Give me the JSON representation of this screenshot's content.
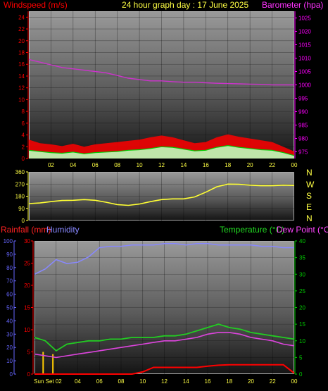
{
  "header": {
    "windspeed_label": "Windspeed (m/s)",
    "title": "24 hour graph day : 17 June 2025",
    "barometer_label": "Barometer (hpa)"
  },
  "colors": {
    "wind": "#ff0000",
    "gust": "#00cc00",
    "barometer": "#cc33cc",
    "direction": "#ffff33",
    "temperature": "#22cc22",
    "dewpoint": "#dd44dd",
    "humidity": "#8888ff",
    "rain": "#ff0000",
    "axis_red": "#ff0000",
    "axis_green": "#00cc00",
    "axis_magenta": "#ff00ff",
    "axis_blue": "#6666ff"
  },
  "x_ticks": [
    "02",
    "04",
    "06",
    "08",
    "10",
    "12",
    "14",
    "16",
    "18",
    "20",
    "22",
    "00"
  ],
  "bottom_x_ticks": [
    "Sun Set 02",
    "04",
    "06",
    "08",
    "10",
    "12",
    "14",
    "16",
    "18",
    "20",
    "22",
    "00"
  ],
  "wind_panel": {
    "chart_data": {
      "type": "line",
      "left_axis": {
        "label": "Windspeed (m/s)",
        "ticks": [
          0,
          2,
          4,
          6,
          8,
          10,
          12,
          14,
          16,
          18,
          20,
          22,
          24
        ],
        "ylim": [
          0,
          25
        ]
      },
      "right_axis": {
        "label": "Barometer (hpa)",
        "ticks": [
          975,
          980,
          985,
          990,
          995,
          1000,
          1005,
          1010,
          1015,
          1020,
          1025
        ],
        "ylim": [
          972.5,
          1027.5
        ]
      },
      "x": [
        0,
        1,
        2,
        3,
        4,
        5,
        6,
        7,
        8,
        9,
        10,
        11,
        12,
        13,
        14,
        15,
        16,
        17,
        18,
        19,
        20,
        21,
        22,
        23,
        24
      ],
      "barometer": [
        1009.5,
        1008.5,
        1007.5,
        1006.5,
        1006,
        1005.5,
        1005,
        1004.5,
        1003.5,
        1002.5,
        1002,
        1001.5,
        1001.5,
        1001.2,
        1001,
        1001,
        1000.8,
        1000.6,
        1000.5,
        1000.4,
        1000.3,
        1000.2,
        1000,
        1000,
        1000
      ],
      "windspeed": [
        3.2,
        2.6,
        2.4,
        2.1,
        2.5,
        2.0,
        2.4,
        2.6,
        2.8,
        3.0,
        3.2,
        3.6,
        3.9,
        3.6,
        3.1,
        2.6,
        2.8,
        3.6,
        4.1,
        3.7,
        3.4,
        3.1,
        2.8,
        2.0,
        1.2
      ],
      "gust": [
        1.4,
        1.2,
        1.0,
        0.9,
        1.1,
        0.8,
        1.0,
        1.1,
        1.2,
        1.4,
        1.5,
        1.7,
        2.0,
        1.9,
        1.6,
        1.3,
        1.4,
        1.9,
        2.2,
        1.9,
        1.7,
        1.5,
        1.4,
        1.0,
        0.5
      ]
    }
  },
  "dir_panel": {
    "compass": [
      "N",
      "W",
      "S",
      "E",
      "N"
    ],
    "chart_data": {
      "type": "line",
      "axis": {
        "ticks": [
          0,
          90,
          180,
          270,
          360
        ],
        "ylim": [
          0,
          360
        ]
      },
      "x": [
        0,
        1,
        2,
        3,
        4,
        5,
        6,
        7,
        8,
        9,
        10,
        11,
        12,
        13,
        14,
        15,
        16,
        17,
        18,
        19,
        20,
        21,
        22,
        23,
        24
      ],
      "direction": [
        125,
        130,
        140,
        148,
        150,
        155,
        150,
        135,
        118,
        112,
        122,
        140,
        155,
        160,
        160,
        175,
        210,
        250,
        270,
        268,
        262,
        258,
        258,
        262,
        260
      ]
    }
  },
  "bottom_panel": {
    "rainfall_label": "Rainfall (mm)",
    "humidity_label": "Humidity",
    "temperature_label": "Temperature (°C)",
    "dewpoint_label": "Dew Point (°C)",
    "chart_data": {
      "type": "line",
      "humidity_axis": {
        "ticks": [
          0,
          10,
          20,
          30,
          40,
          50,
          60,
          70,
          80,
          90,
          100
        ],
        "ylim": [
          0,
          100
        ]
      },
      "rain_axis": {
        "ticks": [
          0,
          5,
          10,
          15,
          20,
          25,
          30
        ],
        "ylim": [
          0,
          30
        ]
      },
      "temp_axis": {
        "ticks": [
          0,
          5,
          10,
          15,
          20,
          25,
          30,
          35,
          40
        ],
        "ylim": [
          0,
          40
        ]
      },
      "x": [
        0,
        1,
        2,
        3,
        4,
        5,
        6,
        7,
        8,
        9,
        10,
        11,
        12,
        13,
        14,
        15,
        16,
        17,
        18,
        19,
        20,
        21,
        22,
        23,
        24
      ],
      "humidity": [
        75,
        79,
        86,
        83,
        84,
        88,
        95,
        96,
        96,
        97,
        97,
        97,
        98,
        98,
        97,
        98,
        98,
        97,
        97,
        97,
        97,
        96,
        96,
        95,
        95
      ],
      "temperature": [
        11,
        10,
        7,
        9,
        9.5,
        10,
        10,
        10.5,
        10.5,
        11,
        11,
        11,
        11.5,
        11.5,
        12,
        13,
        14,
        15,
        14,
        13.5,
        12.5,
        12,
        11.5,
        11,
        10.5
      ],
      "dewpoint": [
        6,
        5.5,
        5,
        5.5,
        6,
        6.5,
        7,
        7.5,
        8,
        8.5,
        9,
        9.5,
        10,
        10,
        10.5,
        11,
        12,
        12.5,
        12.5,
        12,
        11,
        10.5,
        10,
        9,
        8.5
      ],
      "rainfall": [
        0,
        0,
        0,
        0,
        0,
        0,
        0,
        0,
        0,
        0,
        0.5,
        1.5,
        1.5,
        1.5,
        1.5,
        1.5,
        1.8,
        2,
        2.1,
        2.1,
        2.1,
        2.1,
        2.1,
        2.1,
        0.2
      ],
      "rain_rate_bars": [
        {
          "x": 0.8,
          "value": 5
        },
        {
          "x": 1.7,
          "value": 4.5
        }
      ]
    }
  }
}
